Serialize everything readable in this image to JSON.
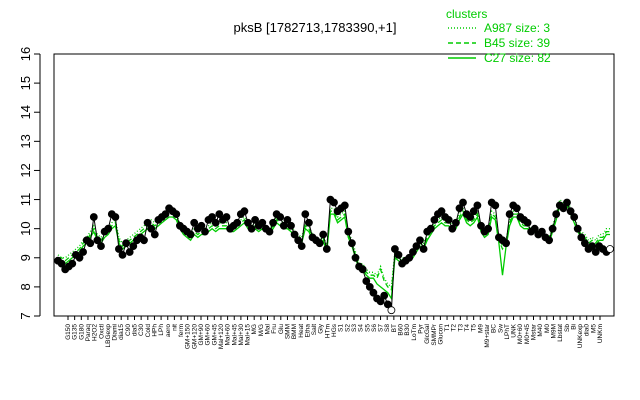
{
  "chart_data": {
    "type": "line",
    "title": "pksB [1782713,1783390,+1]",
    "xlabel": "",
    "ylabel": "",
    "ylim": [
      7,
      16
    ],
    "yticks": [
      7,
      8,
      9,
      10,
      11,
      12,
      13,
      14,
      15,
      16
    ],
    "grid": false,
    "legend": {
      "title": "clusters",
      "placement": "top-right",
      "color": "#00cc00",
      "entries": [
        {
          "label": "A987 size: 3",
          "style": "dotted"
        },
        {
          "label": "B45 size: 39",
          "style": "dashed"
        },
        {
          "label": "C27 size: 82",
          "style": "solid"
        }
      ]
    },
    "x_tick_labels": [
      "G150",
      "G135",
      "G180",
      "Paraq",
      "H2O2",
      "Oxctl",
      "LBGexp",
      "Diami",
      "dia15",
      "C90",
      "dia5",
      "C30",
      "Cold",
      "HPh",
      "LPh",
      "aero",
      "nit",
      "ferm",
      "GM+150",
      "GM+120",
      "GM+90",
      "GM+60",
      "GM+45",
      "Mal+120",
      "Mal+60",
      "Mal+45",
      "Mal+30",
      "Mal+15",
      "MG",
      "M/G",
      "Mal",
      "Fru",
      "Glu",
      "SMM",
      "BMM",
      "Heat",
      "Etha",
      "Salt",
      "Gly",
      "HTm",
      "HGs",
      "S1",
      "S2",
      "S3",
      "S4",
      "S5",
      "S6",
      "S7",
      "S8",
      "BT",
      "B60",
      "B30",
      "LoTm",
      "Pyr",
      "GlcGal",
      "SMMPr",
      "Glucon",
      "T1",
      "T2",
      "T3",
      "T4",
      "T5",
      "M9",
      "M9+star",
      "BC",
      "Sw",
      "LPhT",
      "UNK",
      "M0+60",
      "M0+45",
      "Mstar",
      "M40",
      "M0",
      "M9M",
      "Lbstat",
      "Sb",
      "Bi",
      "UNKexp",
      "dia0",
      "M5",
      "UNKm"
    ],
    "series": [
      {
        "name": "",
        "points_y": [
          8.9,
          8.8,
          8.6,
          8.7,
          8.8,
          9.1,
          9.0,
          9.2,
          9.6,
          9.5,
          10.4,
          9.6,
          9.4,
          9.9,
          10.0,
          10.5,
          10.4,
          9.3,
          9.1,
          9.5,
          9.2,
          9.4,
          9.6,
          9.7,
          9.6,
          10.2,
          10.0,
          9.8,
          10.3,
          10.4,
          10.5,
          10.7,
          10.6,
          10.5,
          10.1,
          10.0,
          9.9,
          9.8,
          10.2,
          10.0,
          10.1,
          9.9,
          10.3,
          10.4,
          10.2,
          10.5,
          10.3,
          10.4,
          10.0,
          10.1,
          10.2,
          10.5,
          10.6,
          10.2,
          10.0,
          10.3,
          10.1,
          10.2,
          10.0,
          9.9,
          10.2,
          10.5,
          10.4,
          10.1,
          10.3,
          10.1,
          9.8,
          9.6,
          9.4,
          10.5,
          10.2,
          9.7,
          9.6,
          9.5,
          9.8,
          9.3,
          11.0,
          10.9,
          10.6,
          10.7,
          10.8,
          9.9,
          9.5,
          9.0,
          8.7,
          8.6,
          8.2,
          8.0,
          7.8,
          7.6,
          7.5,
          7.7,
          7.4,
          7.2,
          9.3,
          9.1,
          8.8,
          8.9,
          9.0,
          9.2,
          9.4,
          9.6,
          9.3,
          9.9,
          10.0,
          10.3,
          10.5,
          10.6,
          10.4,
          10.3,
          10.0,
          10.2,
          10.7,
          10.9,
          10.5,
          10.4,
          10.6,
          10.8,
          10.1,
          9.9,
          10.0,
          10.9,
          10.8,
          9.7,
          9.6,
          9.5,
          10.5,
          10.8,
          10.7,
          10.4,
          10.3,
          10.2,
          9.9,
          10.0,
          9.8,
          9.9,
          9.7,
          9.6,
          10.0,
          10.5,
          10.8,
          10.7,
          10.9,
          10.6,
          10.4,
          10.0,
          9.7,
          9.5,
          9.3,
          9.4,
          9.2,
          9.4,
          9.3,
          9.2,
          9.3
        ]
      }
    ],
    "cluster_lines": [
      {
        "name": "C27",
        "style": "solid",
        "y": [
          9.0,
          8.9,
          8.8,
          8.9,
          9.0,
          9.1,
          9.2,
          9.4,
          9.5,
          9.7,
          9.9,
          9.6,
          9.5,
          9.7,
          9.8,
          10.0,
          10.1,
          9.5,
          9.3,
          9.4,
          9.5,
          9.6,
          9.7,
          9.8,
          9.9,
          10.0,
          10.1,
          10.0,
          10.1,
          10.2,
          10.3,
          10.4,
          10.4,
          10.3,
          10.0,
          9.8,
          9.7,
          9.6,
          9.8,
          9.7,
          9.8,
          9.8,
          9.9,
          10.0,
          9.9,
          10.0,
          10.0,
          10.0,
          9.9,
          9.9,
          10.0,
          10.1,
          10.2,
          10.0,
          9.9,
          10.0,
          9.9,
          10.0,
          9.9,
          9.8,
          10.0,
          10.2,
          10.1,
          10.0,
          10.0,
          9.9,
          9.7,
          9.6,
          9.5,
          10.0,
          9.9,
          9.6,
          9.5,
          9.4,
          9.6,
          9.2,
          10.5,
          10.5,
          10.2,
          10.3,
          10.4,
          9.7,
          9.4,
          9.0,
          8.6,
          8.6,
          8.4,
          8.3,
          8.3,
          8.1,
          8.0,
          7.9,
          7.8,
          7.6,
          9.0,
          8.9,
          8.8,
          8.8,
          8.9,
          9.0,
          9.2,
          9.4,
          9.3,
          9.6,
          9.8,
          10.0,
          10.1,
          10.2,
          10.1,
          10.1,
          9.9,
          10.0,
          10.3,
          10.5,
          10.2,
          10.1,
          10.2,
          10.4,
          9.9,
          9.7,
          9.8,
          10.4,
          10.3,
          9.5,
          8.4,
          9.4,
          10.1,
          10.4,
          10.4,
          10.1,
          10.0,
          10.0,
          9.8,
          9.9,
          9.7,
          9.8,
          9.6,
          9.5,
          9.9,
          10.3,
          10.8,
          10.7,
          10.8,
          10.5,
          10.2,
          9.9,
          9.7,
          9.6,
          9.4,
          9.5,
          9.4,
          9.6,
          9.6,
          9.8,
          9.8
        ]
      },
      {
        "name": "B45",
        "style": "dashed",
        "y": [
          9.0,
          9.0,
          8.9,
          9.0,
          9.1,
          9.2,
          9.3,
          9.5,
          9.6,
          9.8,
          10.0,
          9.7,
          9.6,
          9.8,
          9.9,
          10.1,
          10.2,
          9.6,
          9.4,
          9.5,
          9.6,
          9.7,
          9.8,
          9.9,
          10.0,
          10.1,
          10.2,
          10.1,
          10.2,
          10.3,
          10.4,
          10.5,
          10.5,
          10.4,
          10.1,
          9.9,
          9.8,
          9.7,
          9.9,
          9.8,
          9.9,
          9.9,
          10.0,
          10.1,
          10.0,
          10.1,
          10.1,
          10.1,
          10.0,
          10.0,
          10.1,
          10.2,
          10.3,
          10.1,
          10.0,
          10.1,
          10.0,
          10.1,
          10.0,
          9.9,
          10.1,
          10.3,
          10.2,
          10.1,
          10.1,
          10.0,
          9.8,
          9.7,
          9.6,
          10.1,
          10.0,
          9.7,
          9.6,
          9.5,
          9.7,
          9.3,
          10.6,
          10.6,
          10.3,
          10.4,
          10.5,
          9.8,
          9.5,
          9.1,
          8.7,
          8.7,
          8.5,
          8.4,
          8.4,
          8.3,
          8.6,
          8.2,
          8.0,
          7.9,
          9.1,
          9.0,
          8.9,
          8.9,
          9.0,
          9.1,
          9.3,
          9.5,
          9.4,
          9.7,
          9.9,
          10.1,
          10.2,
          10.3,
          10.2,
          10.2,
          10.0,
          10.1,
          10.4,
          10.6,
          10.3,
          10.2,
          10.3,
          10.5,
          10.0,
          9.8,
          9.9,
          10.5,
          10.4,
          9.6,
          9.3,
          9.5,
          10.2,
          10.5,
          10.5,
          10.2,
          10.1,
          10.1,
          9.9,
          10.0,
          9.8,
          9.9,
          9.7,
          9.6,
          10.0,
          10.4,
          10.9,
          10.8,
          10.9,
          10.6,
          10.3,
          10.0,
          9.8,
          9.7,
          9.5,
          9.6,
          9.5,
          9.7,
          9.7,
          9.9,
          9.9
        ]
      },
      {
        "name": "A987",
        "style": "dotted",
        "y": [
          9.1,
          9.0,
          9.0,
          9.1,
          9.2,
          9.3,
          9.4,
          9.6,
          9.7,
          9.9,
          10.1,
          9.8,
          9.7,
          9.9,
          10.0,
          10.2,
          10.3,
          9.7,
          9.5,
          9.6,
          9.7,
          9.8,
          9.9,
          10.0,
          10.1,
          10.2,
          10.3,
          10.2,
          10.3,
          10.4,
          10.5,
          10.6,
          10.6,
          10.5,
          10.2,
          10.0,
          9.9,
          9.8,
          10.0,
          9.9,
          10.0,
          10.0,
          10.1,
          10.2,
          10.1,
          10.2,
          10.2,
          10.2,
          10.1,
          10.1,
          10.2,
          10.3,
          10.4,
          10.2,
          10.1,
          10.2,
          10.1,
          10.2,
          10.1,
          10.0,
          10.2,
          10.4,
          10.3,
          10.2,
          10.2,
          10.1,
          9.9,
          9.8,
          9.7,
          10.2,
          10.1,
          9.8,
          9.7,
          9.6,
          9.8,
          9.4,
          10.7,
          10.7,
          10.4,
          10.5,
          10.6,
          9.9,
          9.6,
          9.2,
          8.8,
          8.8,
          8.6,
          8.5,
          8.5,
          8.4,
          8.7,
          8.3,
          8.1,
          8.0,
          9.2,
          9.1,
          9.0,
          9.0,
          9.1,
          9.2,
          9.4,
          9.6,
          9.5,
          9.8,
          10.0,
          10.2,
          10.3,
          10.4,
          10.3,
          10.3,
          10.1,
          10.2,
          10.5,
          10.7,
          10.4,
          10.3,
          10.4,
          10.6,
          10.1,
          9.9,
          10.0,
          10.6,
          10.5,
          9.7,
          9.4,
          9.6,
          10.3,
          10.6,
          10.6,
          10.3,
          10.2,
          10.2,
          10.0,
          10.1,
          9.9,
          10.0,
          9.8,
          9.7,
          10.1,
          10.5,
          11.0,
          10.9,
          11.0,
          10.7,
          10.4,
          10.1,
          9.9,
          9.8,
          9.6,
          9.7,
          9.6,
          9.8,
          9.8,
          10.0,
          10.0
        ]
      }
    ]
  }
}
